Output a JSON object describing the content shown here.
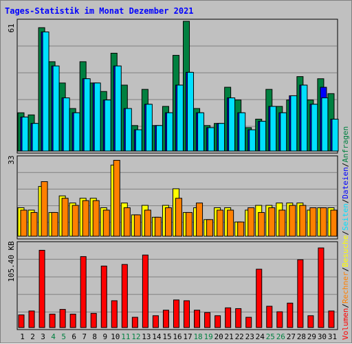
{
  "title": "Tages-Statistik im Monat Dezember 2021",
  "legend": {
    "volumen": "Volumen",
    "rechner": "Rechner",
    "besuche": "Besuche",
    "seiten": "Seiten",
    "dateien": "Dateien",
    "anfragen": "Anfragen",
    "separator": "/"
  },
  "colors": {
    "background": "#c0c0c0",
    "title": "#0000ff",
    "anfragen": "#008040",
    "dateien": "#0000ff",
    "seiten": "#00e0ff",
    "besuche": "#ffff00",
    "rechner": "#ff8000",
    "volumen": "#ff0000",
    "weekend_day": "#008040",
    "grid": "#808080"
  },
  "chart_data": [
    {
      "type": "bar",
      "title": "Tages-Statistik im Monat Dezember 2021",
      "categories": [
        "1",
        "2",
        "3",
        "4",
        "5",
        "6",
        "7",
        "8",
        "9",
        "10",
        "11",
        "12",
        "13",
        "14",
        "15",
        "16",
        "17",
        "18",
        "19",
        "20",
        "21",
        "22",
        "23",
        "24",
        "25",
        "26",
        "27",
        "28",
        "29",
        "30",
        "31"
      ],
      "weekend_categories": [
        "4",
        "5",
        "11",
        "12",
        "18",
        "19",
        "25",
        "26"
      ],
      "y_max_label": "61",
      "ylim": [
        0,
        61
      ],
      "grid": true,
      "series": [
        {
          "name": "Anfragen",
          "values": [
            18,
            17,
            58,
            42,
            32,
            20,
            42,
            32,
            28,
            46,
            31,
            12,
            29,
            12,
            21,
            45,
            61,
            20,
            12,
            13,
            30,
            24,
            11,
            15,
            29,
            21,
            24,
            35,
            24,
            34,
            27
          ]
        },
        {
          "name": "Seiten",
          "values": [
            16,
            13,
            56,
            40,
            25,
            18,
            34,
            32,
            24,
            40,
            20,
            10,
            22,
            12,
            18,
            31,
            37,
            18,
            11,
            13,
            25,
            18,
            10,
            14,
            21,
            18,
            26,
            31,
            22,
            25,
            15
          ]
        },
        {
          "name": "Dateien",
          "values": [
            16,
            13,
            56,
            40,
            25,
            18,
            34,
            32,
            24,
            40,
            20,
            10,
            22,
            12,
            18,
            31,
            37,
            18,
            11,
            13,
            25,
            18,
            10,
            14,
            21,
            18,
            26,
            31,
            22,
            30,
            15
          ]
        }
      ]
    },
    {
      "type": "bar",
      "y_max_label": "33",
      "ylim": [
        0,
        33
      ],
      "grid": true,
      "series": [
        {
          "name": "Besuche",
          "values": [
            12,
            11,
            21,
            10,
            17,
            14,
            16,
            16,
            12,
            30,
            14,
            9,
            13,
            8,
            13,
            20,
            10,
            12,
            7,
            12,
            12,
            6,
            11,
            13,
            13,
            14,
            14,
            14,
            11,
            12,
            12
          ]
        },
        {
          "name": "Rechner",
          "values": [
            11,
            10,
            23,
            10,
            16,
            13,
            15,
            15,
            11,
            32,
            12,
            9,
            11,
            8,
            12,
            16,
            10,
            14,
            7,
            11,
            11,
            6,
            12,
            10,
            12,
            11,
            13,
            13,
            12,
            12,
            11
          ]
        }
      ]
    },
    {
      "type": "bar",
      "y_max_label": "105.40 KB",
      "ylim": [
        0,
        105.4
      ],
      "grid": true,
      "series": [
        {
          "name": "Volumen",
          "values": [
            16,
            21,
            98,
            17,
            23,
            17,
            90,
            18,
            78,
            34,
            80,
            13,
            92,
            15,
            22,
            35,
            34,
            22,
            19,
            15,
            25,
            24,
            13,
            74,
            27,
            20,
            31,
            86,
            15,
            101,
            21
          ]
        }
      ]
    }
  ]
}
